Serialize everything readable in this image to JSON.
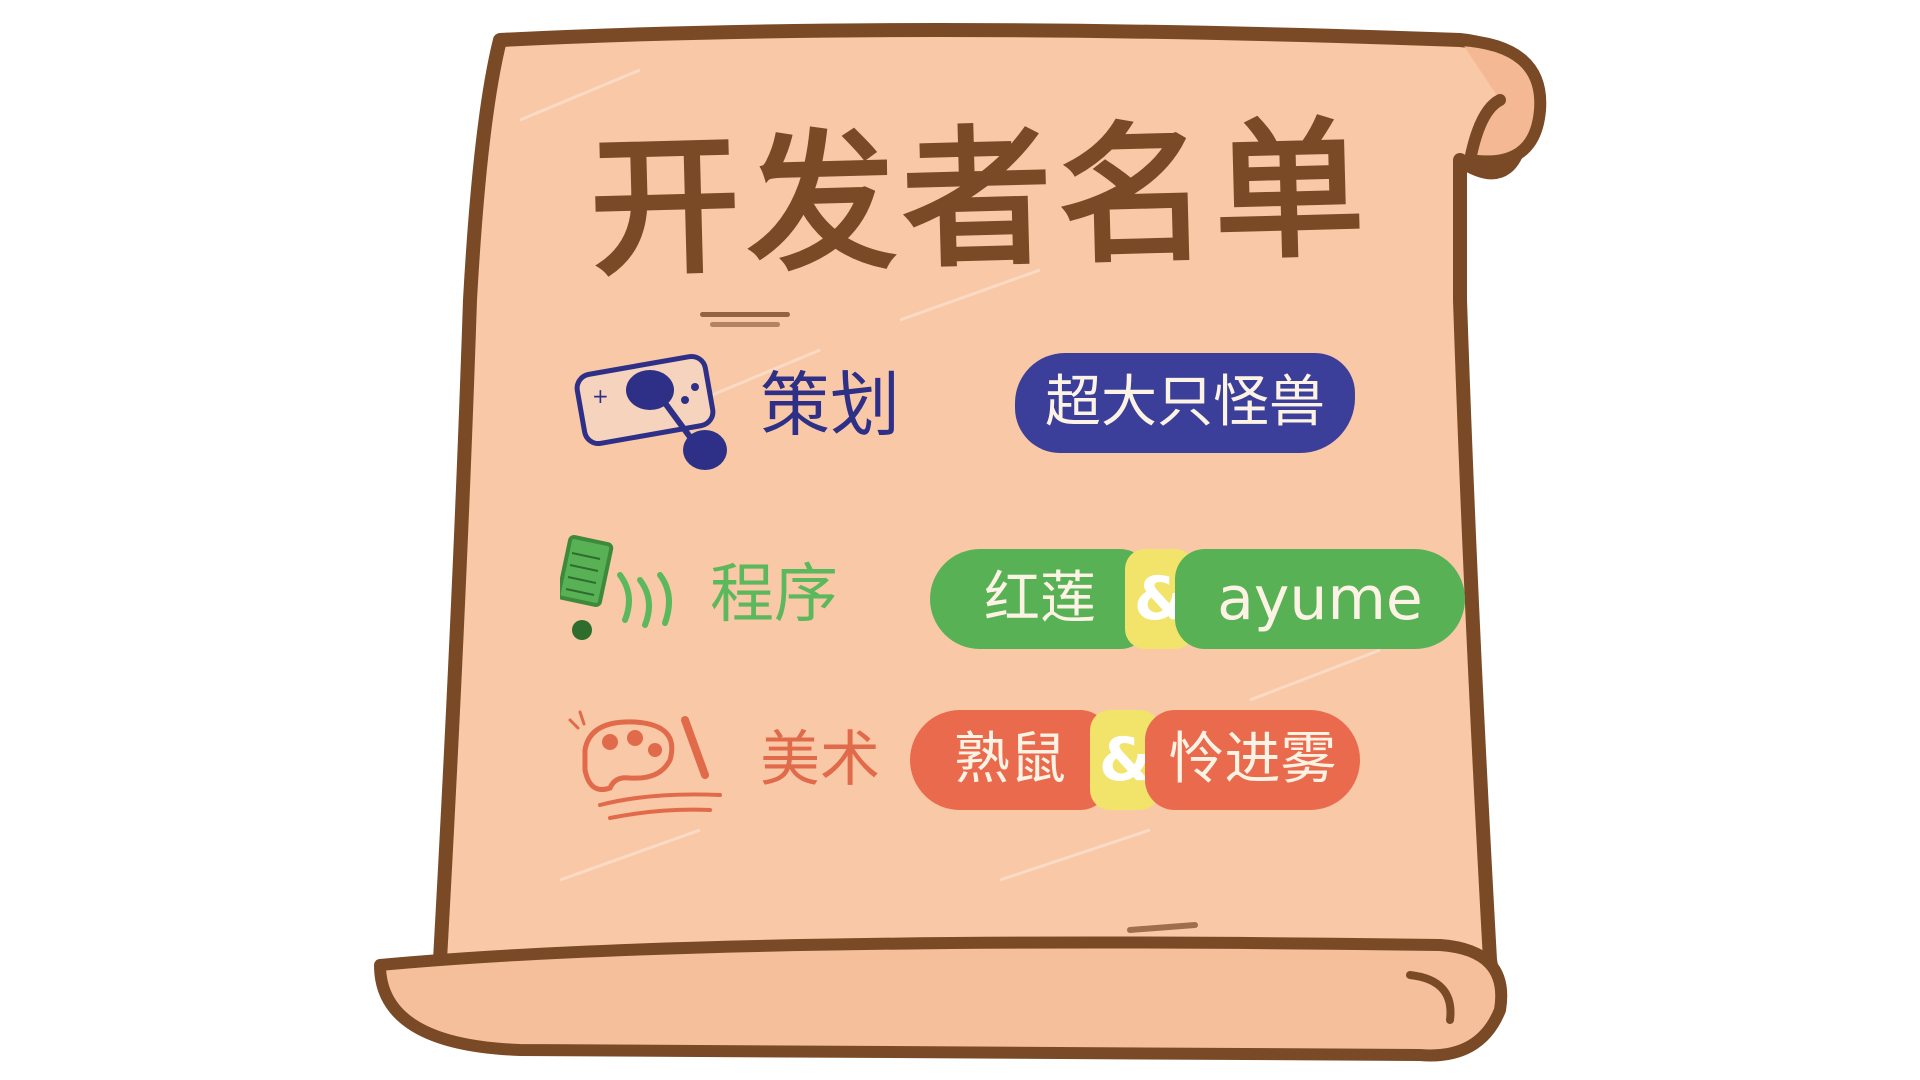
{
  "title": "开发者名单",
  "colors": {
    "scroll_fill": "#f9c8a6",
    "scroll_outline": "#7a4a26",
    "planning": "#3b3f9a",
    "program": "#58b155",
    "art": "#ea6a4d",
    "amp_highlight": "#f2e36b"
  },
  "credits": [
    {
      "role": "策划",
      "icon": "game-controller-sunglasses-icon",
      "members": [
        "超大只怪兽"
      ]
    },
    {
      "role": "程序",
      "icon": "keyboard-cables-icon",
      "members": [
        "红莲",
        "ayume"
      ],
      "separator": "&"
    },
    {
      "role": "美术",
      "icon": "palette-brush-icon",
      "members": [
        "熟鼠",
        "怜进雾"
      ],
      "separator": "&"
    }
  ]
}
